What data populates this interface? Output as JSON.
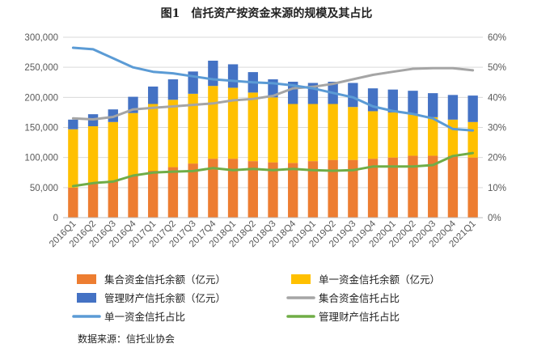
{
  "source_note": "数据来源：信托业协会",
  "chart_data": {
    "type": "bar",
    "title": "图1　信托资产按资金来源的规模及其占比",
    "categories": [
      "2016Q1",
      "2016Q2",
      "2016Q3",
      "2016Q4",
      "2017Q1",
      "2017Q2",
      "2017Q3",
      "2017Q4",
      "2018Q1",
      "2018Q2",
      "2018Q3",
      "2018Q4",
      "2019Q1",
      "2019Q2",
      "2019Q3",
      "2019Q4",
      "2020Q1",
      "2020Q2",
      "2020Q3",
      "2020Q4",
      "2021Q1"
    ],
    "ylim_left": [
      0,
      300000
    ],
    "yticks_left": [
      "0",
      "50,000",
      "100,000",
      "150,000",
      "200,000",
      "250,000",
      "300,000"
    ],
    "ylim_right": [
      0,
      60
    ],
    "yticks_right": [
      "0%",
      "10%",
      "20%",
      "30%",
      "40%",
      "50%",
      "60%"
    ],
    "grid": true,
    "legend_position": "bottom",
    "bar_series": [
      {
        "name": "集合资金信托余额（亿元）",
        "color": "#ED7D31",
        "values": [
          50000,
          56000,
          60000,
          70000,
          78000,
          84000,
          90000,
          98000,
          98000,
          94000,
          92000,
          91000,
          94000,
          96000,
          96000,
          98000,
          100000,
          103000,
          103000,
          103000,
          100000
        ]
      },
      {
        "name": "单一资金信托余额（亿元）",
        "color": "#FFC000",
        "values": [
          97000,
          96000,
          99000,
          104000,
          111000,
          112000,
          116000,
          121000,
          118000,
          114000,
          108000,
          98000,
          95000,
          93000,
          88000,
          79000,
          75000,
          70000,
          64000,
          60000,
          59000
        ]
      },
      {
        "name": "管理财产信托余额（亿元）",
        "color": "#4472C4",
        "values": [
          16000,
          20000,
          21000,
          27000,
          29000,
          34000,
          37000,
          42000,
          39000,
          34000,
          30000,
          37000,
          35000,
          37000,
          40000,
          38000,
          38000,
          38000,
          40000,
          41000,
          44000
        ]
      }
    ],
    "line_series": [
      {
        "name": "集合资金信托占比",
        "color": "#A5A5A5",
        "values": [
          33,
          32.7,
          33.5,
          36,
          36.5,
          37,
          37.5,
          38,
          39,
          39.5,
          40.5,
          43,
          43.5,
          44.5,
          46,
          47.5,
          48.5,
          49.5,
          49.7,
          49.7,
          49
        ]
      },
      {
        "name": "单一资金信托占比",
        "color": "#5B9BD5",
        "values": [
          56.5,
          56,
          53,
          50,
          48.5,
          48,
          47,
          46,
          45.5,
          45,
          44.7,
          44,
          43,
          41.5,
          40,
          37,
          35.5,
          34.5,
          33,
          29.5,
          29
        ]
      },
      {
        "name": "管理财产信托占比",
        "color": "#70AD47",
        "values": [
          10.5,
          11.5,
          12,
          14,
          15,
          15.3,
          15.5,
          16.5,
          15.8,
          16.2,
          15.8,
          16.2,
          15.8,
          15.6,
          15.8,
          17,
          17,
          17,
          17.5,
          20.5,
          21.5
        ]
      }
    ]
  }
}
